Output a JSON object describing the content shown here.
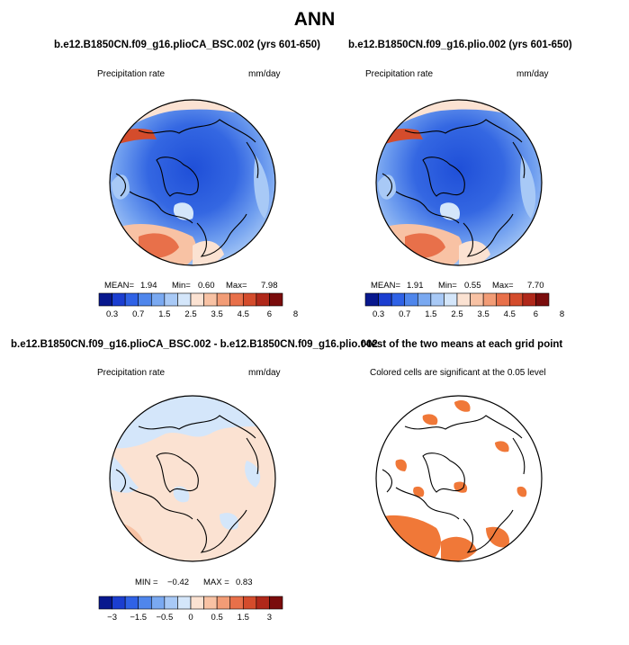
{
  "title": "ANN",
  "colors": {
    "precip_palette": [
      "#08188e",
      "#1b3ed0",
      "#2f62e6",
      "#4f86ec",
      "#7aa9f1",
      "#a8c9f6",
      "#d4e6fa",
      "#fbe2d2",
      "#f8c2a4",
      "#f29c76",
      "#e8704a",
      "#d44c2c",
      "#b0281a",
      "#7a0c0c"
    ],
    "diff_palette": [
      "#08188e",
      "#1b3ed0",
      "#2f62e6",
      "#4f86ec",
      "#7aa9f1",
      "#a8c9f6",
      "#d4e6fa",
      "#fbe2d2",
      "#f8c2a4",
      "#f29c76",
      "#e8704a",
      "#d44c2c",
      "#b0281a",
      "#7a0c0c"
    ],
    "signif": "#f07838",
    "coast": "#000000"
  },
  "panels": {
    "top_left": {
      "case": "b.e12.B1850CN.f09_g16.plioCA_BSC.002 (yrs 601-650)",
      "variable": "Precipitation rate",
      "units": "mm/day",
      "mean_label": "MEAN=",
      "mean": "1.94",
      "min_label": "Min=",
      "min": "0.60",
      "max_label": "Max=",
      "max": "7.98"
    },
    "top_right": {
      "case": "b.e12.B1850CN.f09_g16.plio.002 (yrs 601-650)",
      "variable": "Precipitation rate",
      "units": "mm/day",
      "mean_label": "MEAN=",
      "mean": "1.91",
      "min_label": "Min=",
      "min": "0.55",
      "max_label": "Max=",
      "max": "7.70"
    },
    "bottom_left": {
      "case": "b.e12.B1850CN.f09_g16.plioCA_BSC.002 - b.e12.B1850CN.f09_g16.plio.002",
      "variable": "Precipitation rate",
      "units": "mm/day",
      "min_label": "MIN =",
      "min": "−0.42",
      "max_label": "MAX =",
      "max": "0.83"
    },
    "bottom_right": {
      "case": "t-test of the two means at each grid point",
      "caption": "Colored cells are significant at the 0.05 level"
    }
  },
  "colorbars": {
    "precip_ticks": [
      "0.3",
      "0.7",
      "1.5",
      "2.5",
      "3.5",
      "4.5",
      "6",
      "8"
    ],
    "diff_ticks": [
      "−3",
      "−1.5",
      "−0.5",
      "0",
      "0.5",
      "1.5",
      "3"
    ]
  }
}
